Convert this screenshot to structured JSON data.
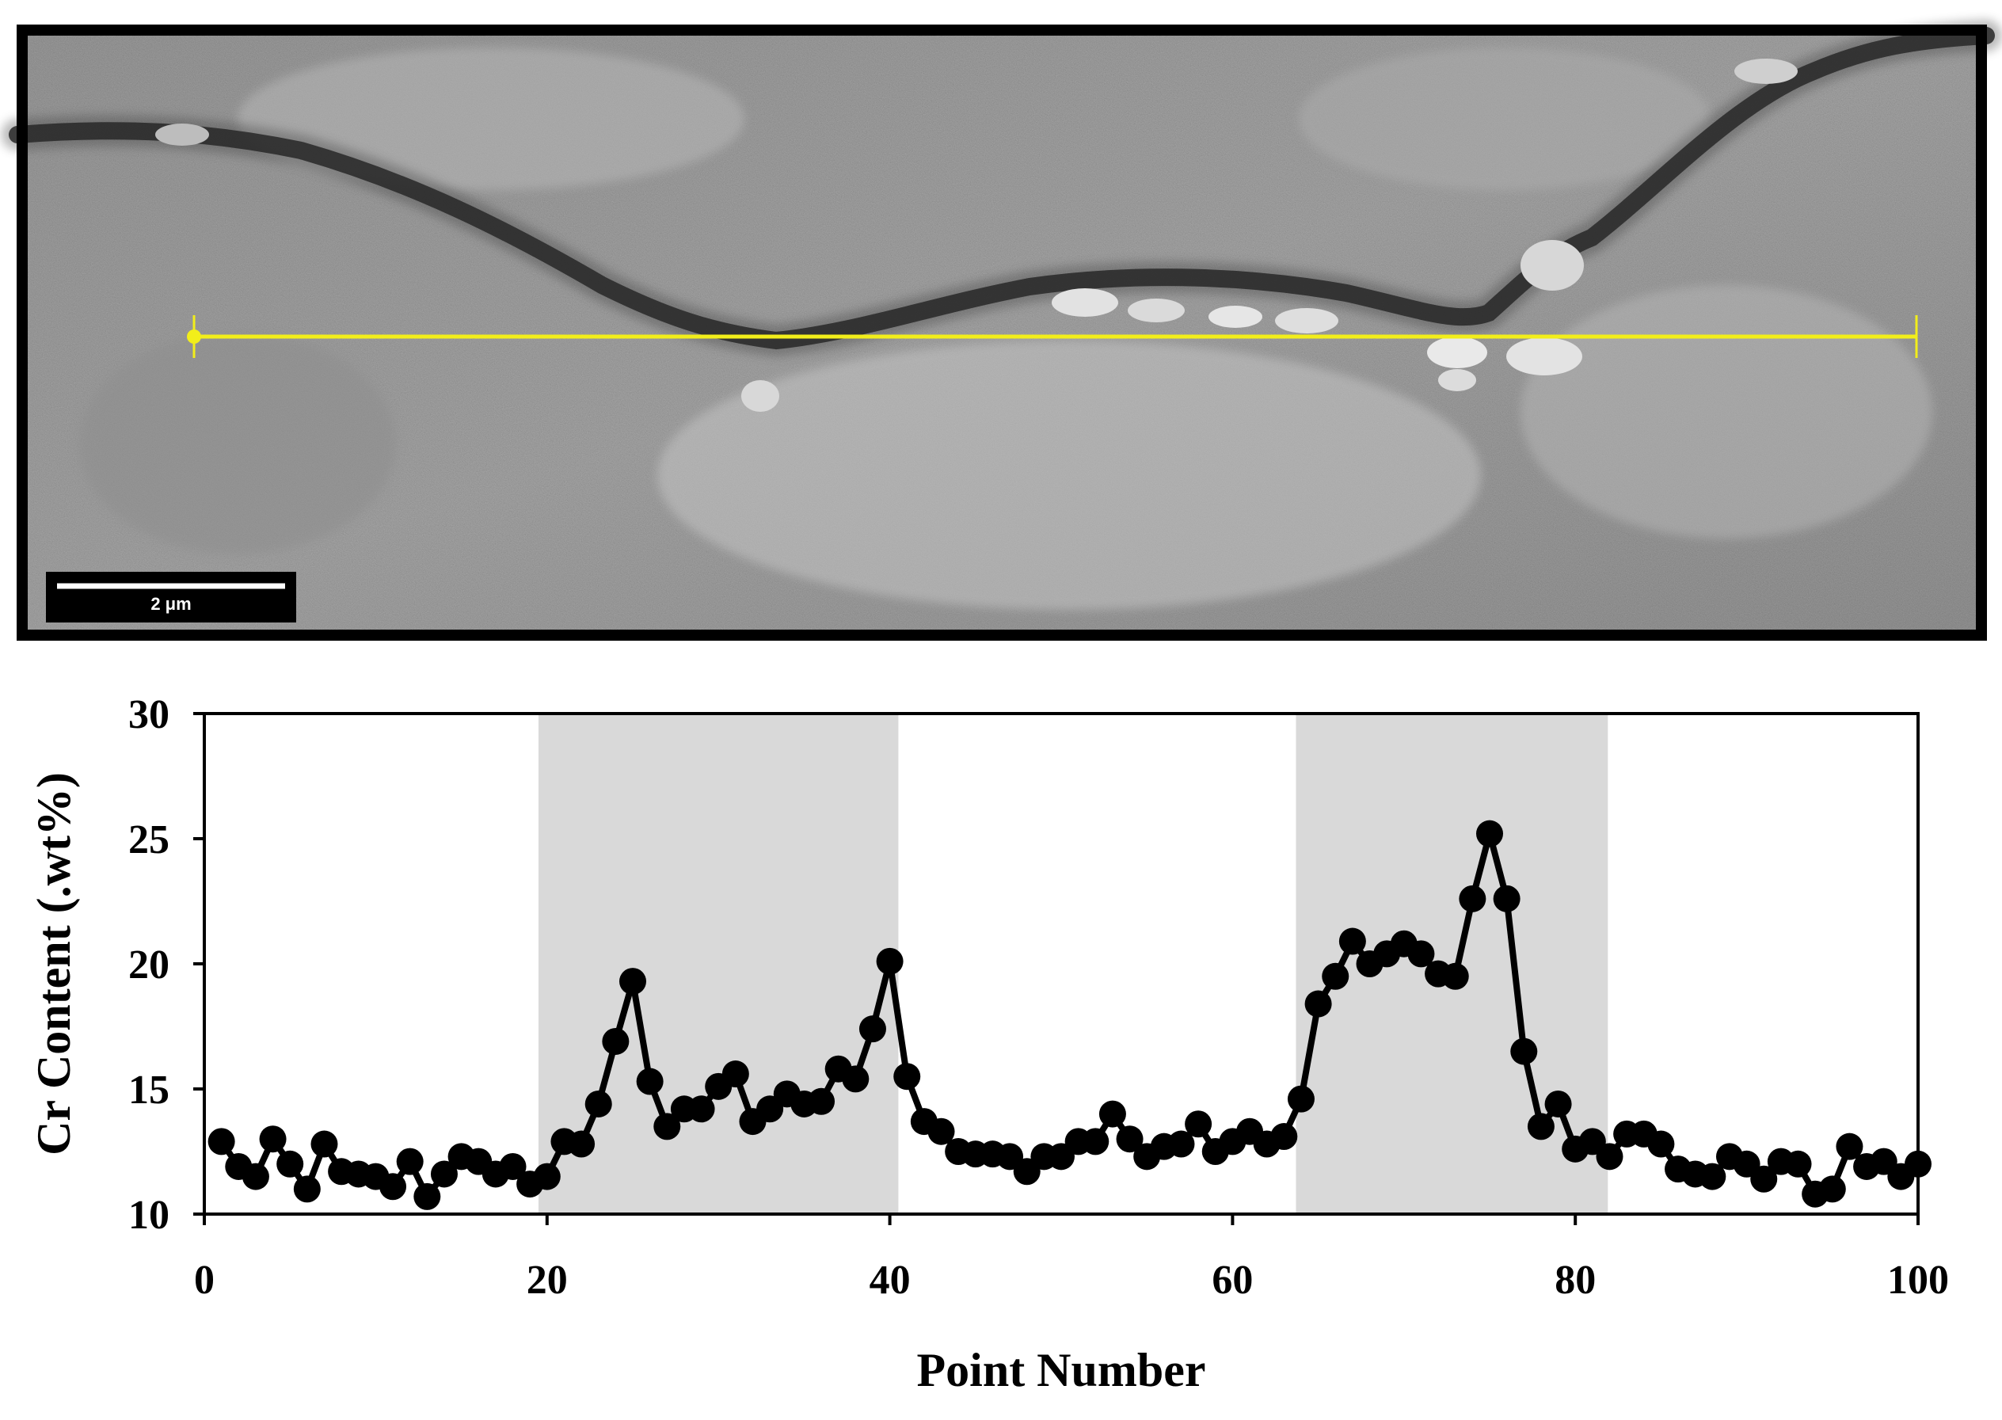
{
  "micrograph": {
    "scale_bar_label": "2 μm",
    "line_color": "#f2ee1a"
  },
  "chart_data": {
    "type": "line",
    "xlabel": "Point Number",
    "ylabel": "Cr Content (.wt%)",
    "xlim": [
      0,
      100
    ],
    "ylim": [
      10,
      30
    ],
    "x_ticks": [
      0,
      20,
      40,
      60,
      80,
      100
    ],
    "y_ticks": [
      10,
      15,
      20,
      25,
      30
    ],
    "grid": false,
    "shaded_regions": [
      [
        19.5,
        40.5
      ],
      [
        63.7,
        81.9
      ]
    ],
    "shade_color": "#d9d9d9",
    "series": [
      {
        "marker_color": "#000000",
        "x": [
          1,
          2,
          3,
          4,
          5,
          6,
          7,
          8,
          9,
          10,
          11,
          12,
          13,
          14,
          15,
          16,
          17,
          18,
          19,
          20,
          21,
          22,
          23,
          24,
          25,
          26,
          27,
          28,
          29,
          30,
          31,
          32,
          33,
          34,
          35,
          36,
          37,
          38,
          39,
          40,
          41,
          42,
          43,
          44,
          45,
          46,
          47,
          48,
          49,
          50,
          51,
          52,
          53,
          54,
          55,
          56,
          57,
          58,
          59,
          60,
          61,
          62,
          63,
          64,
          65,
          66,
          67,
          68,
          69,
          70,
          71,
          72,
          73,
          74,
          75,
          76,
          77,
          78,
          79,
          80,
          81,
          82,
          83,
          84,
          85,
          86,
          87,
          88,
          89,
          90,
          91,
          92,
          93,
          94,
          95,
          96,
          97,
          98,
          99,
          100
        ],
        "y": [
          12.9,
          11.9,
          11.5,
          13.0,
          12.0,
          11.0,
          12.8,
          11.7,
          11.6,
          11.5,
          11.1,
          12.1,
          10.7,
          11.6,
          12.3,
          12.1,
          11.6,
          11.9,
          11.2,
          11.5,
          12.9,
          12.8,
          14.4,
          16.9,
          19.3,
          15.3,
          13.5,
          14.2,
          14.2,
          15.1,
          15.6,
          13.7,
          14.2,
          14.8,
          14.4,
          14.5,
          15.8,
          15.4,
          17.4,
          20.1,
          15.5,
          13.7,
          13.3,
          12.5,
          12.4,
          12.4,
          12.3,
          11.7,
          12.3,
          12.3,
          12.9,
          12.9,
          14.0,
          13.0,
          12.3,
          12.7,
          12.8,
          13.6,
          12.5,
          12.9,
          13.3,
          12.8,
          13.1,
          14.6,
          18.4,
          19.5,
          20.9,
          20.0,
          20.4,
          20.8,
          20.4,
          19.6,
          19.5,
          22.6,
          25.2,
          22.6,
          16.5,
          13.5,
          14.4,
          12.6,
          12.9,
          12.3,
          13.2,
          13.2,
          12.8,
          11.8,
          11.6,
          11.5,
          12.3,
          12.0,
          11.4,
          12.1,
          12.0,
          10.8,
          11.0,
          12.7,
          11.9,
          12.1,
          11.5,
          12.0
        ]
      }
    ]
  }
}
